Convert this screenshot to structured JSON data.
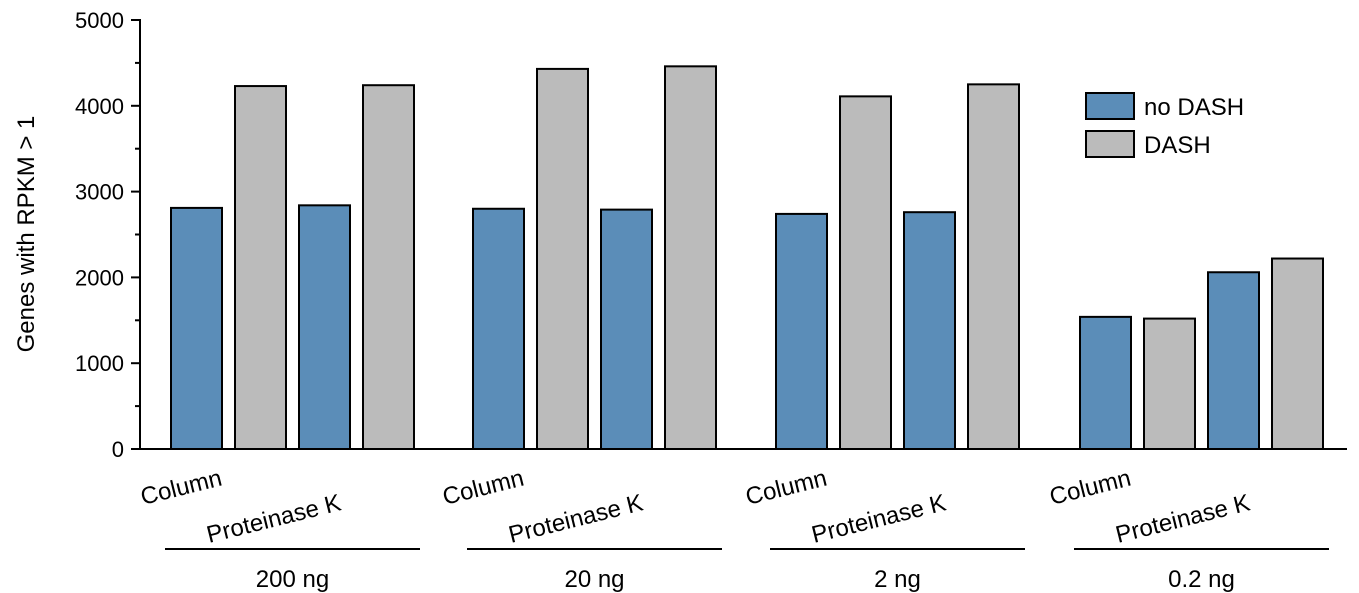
{
  "chart_data": {
    "type": "bar",
    "ylabel": "Genes with RPKM > 1",
    "ylim": [
      0,
      5000
    ],
    "yticks": [
      0,
      1000,
      2000,
      3000,
      4000,
      5000
    ],
    "ytick_labels": [
      "0",
      "1000",
      "2000",
      "3000",
      "4000",
      "5000"
    ],
    "groups": [
      "200 ng",
      "20 ng",
      "2 ng",
      "0.2 ng"
    ],
    "methods": [
      "Column",
      "Proteinase K"
    ],
    "series": [
      {
        "name": "no DASH",
        "color": "#5b8db8",
        "values": [
          2810,
          2840,
          2800,
          2790,
          2740,
          2760,
          1540,
          2060
        ]
      },
      {
        "name": "DASH",
        "color": "#bbbbbb",
        "values": [
          4230,
          4240,
          4430,
          4460,
          4110,
          4250,
          1520,
          2220
        ]
      }
    ],
    "legend_position": "top-right",
    "grid": false
  }
}
